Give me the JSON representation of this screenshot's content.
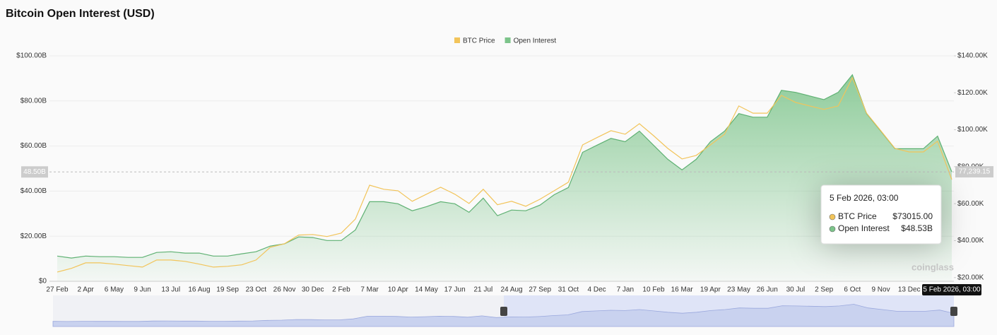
{
  "chart_data": {
    "type": "line",
    "title": "Bitcoin Open Interest (USD)",
    "categories": [
      "27 Feb",
      null,
      "2 Apr",
      null,
      "6 May",
      null,
      "9 Jun",
      null,
      "13 Jul",
      null,
      "16 Aug",
      null,
      "19 Sep",
      null,
      "23 Oct",
      null,
      "26 Nov",
      null,
      "30 Dec",
      null,
      "2 Feb",
      null,
      "7 Mar",
      null,
      "10 Apr",
      null,
      "14 May",
      null,
      "17 Jun",
      null,
      "21 Jul",
      null,
      "24 Aug",
      null,
      "27 Sep",
      null,
      "31 Oct",
      null,
      "4 Dec",
      null,
      "7 Jan",
      null,
      "10 Feb",
      null,
      "16 Mar",
      null,
      "19 Apr",
      null,
      "23 May",
      null,
      "26 Jun",
      null,
      "30 Jul",
      null,
      "2 Sep",
      null,
      "6 Oct",
      null,
      "9 Nov",
      null,
      "13 Dec",
      null,
      null,
      "5 Feb 2026, 03:00"
    ],
    "series": [
      {
        "name": "BTC Price",
        "color": "#f2c45a",
        "axis": "y2",
        "values": [
          23000,
          25000,
          28000,
          28000,
          27300,
          26500,
          25700,
          29500,
          29500,
          28800,
          27300,
          25700,
          26100,
          26900,
          29500,
          36400,
          38300,
          43000,
          43300,
          42200,
          44100,
          51700,
          70000,
          67800,
          67000,
          61300,
          65100,
          68900,
          65100,
          60100,
          67800,
          59400,
          61300,
          58600,
          62400,
          67000,
          71600,
          91800,
          95700,
          99500,
          97600,
          103300,
          96800,
          89900,
          84200,
          86100,
          91800,
          97600,
          112900,
          109000,
          109000,
          118600,
          114800,
          112900,
          111000,
          112900,
          128200,
          109000,
          99500,
          89900,
          88000,
          88000,
          93800,
          73015
        ]
      },
      {
        "name": "Open Interest",
        "color": "#7cc48a",
        "values": [
          11.2,
          10.3,
          11.2,
          10.9,
          10.9,
          10.6,
          10.6,
          12.8,
          13.1,
          12.5,
          12.5,
          11.2,
          11.2,
          12.2,
          13.1,
          15.6,
          16.6,
          19.7,
          19.4,
          18.1,
          18.1,
          22.8,
          35.3,
          35.3,
          34.4,
          31.3,
          33.1,
          35.3,
          34.4,
          30.6,
          36.9,
          29.1,
          31.6,
          31.3,
          33.8,
          38.4,
          41.6,
          57.2,
          60.3,
          63.4,
          61.9,
          66.6,
          60.3,
          54.1,
          49.4,
          54.1,
          61.9,
          66.6,
          74.4,
          72.8,
          72.8,
          84.7,
          83.8,
          82.2,
          80.6,
          83.8,
          91.6,
          74.4,
          66.6,
          58.8,
          58.8,
          58.8,
          64.4,
          48.53
        ]
      }
    ],
    "ylim": [
      0,
      100
    ],
    "yticks": [
      {
        "value": 0,
        "label": "$0"
      },
      {
        "value": 20,
        "label": "$20.00B"
      },
      {
        "value": 40,
        "label": "$40.00B"
      },
      {
        "value": 60,
        "label": "$60.00B"
      },
      {
        "value": 80,
        "label": "$80.00B"
      },
      {
        "value": 100,
        "label": "$100.00B"
      }
    ],
    "y2lim": [
      18000,
      140000
    ],
    "y2ticks": [
      {
        "value": 20000,
        "label": "$20.00K"
      },
      {
        "value": 40000,
        "label": "$40.00K"
      },
      {
        "value": 60000,
        "label": "$60.00K"
      },
      {
        "value": 80000,
        "label": "$80.00K"
      },
      {
        "value": 100000,
        "label": "$100.00K"
      },
      {
        "value": 120000,
        "label": "$120.00K"
      },
      {
        "value": 140000,
        "label": "$140.00K"
      }
    ],
    "grid": true,
    "legend": "top",
    "crosshair": {
      "y": {
        "value": 48.5,
        "label": "48.50B"
      },
      "y2": {
        "value": 77239.15,
        "label": "77,239.15"
      }
    },
    "tooltip": {
      "title": "5 Feb 2026, 03:00",
      "items": [
        {
          "name": "BTC Price",
          "value": 73015,
          "label": "$73015.00"
        },
        {
          "name": "Open Interest",
          "value": 48.53,
          "label": "$48.53B"
        }
      ]
    },
    "watermark": "coinglass"
  }
}
